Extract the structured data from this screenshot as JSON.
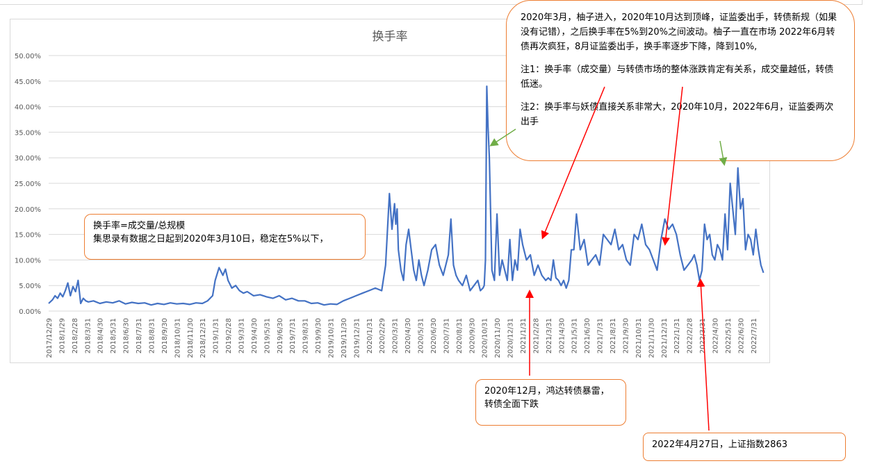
{
  "chart_data": {
    "type": "line",
    "title": "换手率",
    "xlabel": "",
    "ylabel": "",
    "ylim": [
      0,
      0.5
    ],
    "ytick_labels": [
      "0.00%",
      "5.00%",
      "10.00%",
      "15.00%",
      "20.00%",
      "25.00%",
      "30.00%",
      "35.00%",
      "40.00%",
      "45.00%",
      "50.00%"
    ],
    "xtick_labels": [
      "2017/12/29",
      "2018/1/29",
      "2018/2/28",
      "2018/3/31",
      "2018/4/30",
      "2018/5/31",
      "2018/6/30",
      "2018/7/31",
      "2018/8/31",
      "2018/9/30",
      "2018/10/31",
      "2018/11/30",
      "2018/12/31",
      "2019/1/31",
      "2019/2/28",
      "2019/3/31",
      "2019/4/30",
      "2019/5/31",
      "2019/6/30",
      "2019/7/31",
      "2019/8/31",
      "2019/9/30",
      "2019/10/31",
      "2019/11/30",
      "2019/12/31",
      "2020/1/31",
      "2020/2/29",
      "2020/3/31",
      "2020/4/30",
      "2020/5/31",
      "2020/6/30",
      "2020/7/31",
      "2020/8/31",
      "2020/9/30",
      "2020/10/31",
      "2020/11/30",
      "2020/12/31",
      "2021/1/31",
      "2021/2/28",
      "2021/3/31",
      "2021/4/30",
      "2021/5/31",
      "2021/6/30",
      "2021/7/31",
      "2021/8/31",
      "2021/9/30",
      "2021/10/31",
      "2021/11/30",
      "2021/12/31",
      "2022/1/31",
      "2022/2/28",
      "2022/3/31",
      "2022/4/30",
      "2022/5/31",
      "2022/6/30",
      "2022/7/31"
    ],
    "grid": true,
    "legend": "none",
    "series": [
      {
        "color": "#4472c4",
        "x_month_index": [
          0,
          0.3,
          0.5,
          0.7,
          0.9,
          1.1,
          1.3,
          1.5,
          1.7,
          1.9,
          2.1,
          2.3,
          2.5,
          2.7,
          2.9,
          3.1,
          3.5,
          4,
          4.5,
          5,
          5.5,
          6,
          6.5,
          7,
          7.5,
          8,
          8.5,
          9,
          9.5,
          10,
          10.5,
          11,
          11.5,
          12,
          12.4,
          12.8,
          13,
          13.3,
          13.6,
          13.8,
          14,
          14.3,
          14.6,
          14.9,
          15.2,
          15.5,
          16,
          16.5,
          17,
          17.5,
          18,
          18.5,
          19,
          19.5,
          20,
          20.5,
          21,
          21.5,
          22,
          22.5,
          23,
          23.5,
          24,
          24.5,
          25,
          25.5,
          26,
          26.3,
          26.6,
          26.8,
          27,
          27.1,
          27.2,
          27.3,
          27.5,
          27.7,
          27.9,
          28.1,
          28.3,
          28.5,
          28.7,
          28.9,
          29.1,
          29.3,
          29.6,
          29.9,
          30.2,
          30.5,
          30.8,
          31,
          31.2,
          31.4,
          31.6,
          31.8,
          32,
          32.3,
          32.6,
          32.9,
          33.2,
          33.5,
          33.7,
          33.9,
          34,
          34.1,
          34.2,
          34.3,
          34.4,
          34.6,
          34.8,
          35,
          35.2,
          35.4,
          35.6,
          35.8,
          36,
          36.2,
          36.4,
          36.6,
          36.8,
          37,
          37.3,
          37.6,
          37.9,
          38.2,
          38.5,
          38.8,
          39,
          39.2,
          39.4,
          39.6,
          39.8,
          40,
          40.2,
          40.4,
          40.6,
          40.8,
          41,
          41.2,
          41.5,
          41.8,
          42.1,
          42.4,
          42.7,
          43,
          43.3,
          43.6,
          43.9,
          44.2,
          44.5,
          44.8,
          45.1,
          45.4,
          45.7,
          46,
          46.3,
          46.6,
          46.9,
          47.2,
          47.5,
          47.8,
          48.1,
          48.4,
          48.7,
          49,
          49.3,
          49.6,
          49.9,
          50.2,
          50.4,
          50.6,
          50.8,
          51,
          51.2,
          51.4,
          51.6,
          51.8,
          52,
          52.2,
          52.4,
          52.6,
          52.8,
          53,
          53.2,
          53.4,
          53.6,
          53.8,
          54,
          54.2,
          54.4,
          54.6,
          54.8,
          55,
          55.2,
          55.4,
          55.6,
          55.8,
          56,
          56.2
        ],
        "y": [
          0.015,
          0.022,
          0.03,
          0.025,
          0.035,
          0.028,
          0.04,
          0.055,
          0.03,
          0.048,
          0.038,
          0.06,
          0.015,
          0.025,
          0.02,
          0.018,
          0.02,
          0.015,
          0.018,
          0.016,
          0.02,
          0.014,
          0.017,
          0.015,
          0.016,
          0.012,
          0.015,
          0.013,
          0.016,
          0.014,
          0.015,
          0.013,
          0.016,
          0.015,
          0.02,
          0.03,
          0.06,
          0.085,
          0.07,
          0.082,
          0.06,
          0.045,
          0.05,
          0.04,
          0.035,
          0.038,
          0.03,
          0.032,
          0.028,
          0.025,
          0.03,
          0.022,
          0.025,
          0.02,
          0.02,
          0.015,
          0.016,
          0.012,
          0.014,
          0.013,
          0.02,
          0.025,
          0.03,
          0.035,
          0.04,
          0.045,
          0.04,
          0.09,
          0.23,
          0.16,
          0.21,
          0.17,
          0.2,
          0.12,
          0.08,
          0.06,
          0.13,
          0.16,
          0.12,
          0.08,
          0.06,
          0.1,
          0.07,
          0.05,
          0.08,
          0.12,
          0.13,
          0.09,
          0.07,
          0.09,
          0.11,
          0.18,
          0.09,
          0.07,
          0.06,
          0.05,
          0.07,
          0.04,
          0.05,
          0.06,
          0.04,
          0.045,
          0.05,
          0.1,
          0.44,
          0.36,
          0.3,
          0.08,
          0.06,
          0.19,
          0.07,
          0.1,
          0.08,
          0.06,
          0.14,
          0.06,
          0.1,
          0.08,
          0.16,
          0.13,
          0.1,
          0.11,
          0.07,
          0.09,
          0.07,
          0.06,
          0.065,
          0.06,
          0.1,
          0.065,
          0.06,
          0.05,
          0.06,
          0.045,
          0.06,
          0.12,
          0.12,
          0.19,
          0.12,
          0.14,
          0.09,
          0.1,
          0.11,
          0.09,
          0.15,
          0.14,
          0.13,
          0.16,
          0.12,
          0.13,
          0.1,
          0.09,
          0.15,
          0.14,
          0.17,
          0.13,
          0.12,
          0.1,
          0.08,
          0.14,
          0.18,
          0.16,
          0.17,
          0.15,
          0.11,
          0.08,
          0.09,
          0.1,
          0.11,
          0.09,
          0.06,
          0.08,
          0.17,
          0.14,
          0.15,
          0.11,
          0.1,
          0.13,
          0.12,
          0.1,
          0.19,
          0.12,
          0.25,
          0.2,
          0.15,
          0.28,
          0.2,
          0.22,
          0.12,
          0.15,
          0.14,
          0.11,
          0.16,
          0.12,
          0.09,
          0.075
        ]
      }
    ]
  },
  "annotations": {
    "main": [
      "2020年3月，柚子进入，2020年10月达到顶峰，证监委出手，转债新规（如果没有记错），之后换手率在5%到20%之间波动。柚子一直在市场 2022年6月转债再次疯狂，8月证监委出手，换手率逐步下降，降到10%,",
      "注1：换手率（成交量）与转债市场的整体涨跌肯定有关系，成交量越低，转债低迷。",
      "注2：换手率与妖债直接关系非常大，2020年10月，2022年6月，证监委两次出手"
    ],
    "definition": [
      "换手率=成交量/总规模",
      "集思录有数据之日起到2020年3月10日，稳定在5%以下，"
    ],
    "dec2020": [
      "2020年12月，鸿达转债暴雷，",
      "转债全面下跌"
    ],
    "apr2022": "2022年4月27日，上证指数2863",
    "arrow_green": "#70ad47",
    "arrow_red": "#ff0000",
    "box_border": "#ed7d31"
  }
}
